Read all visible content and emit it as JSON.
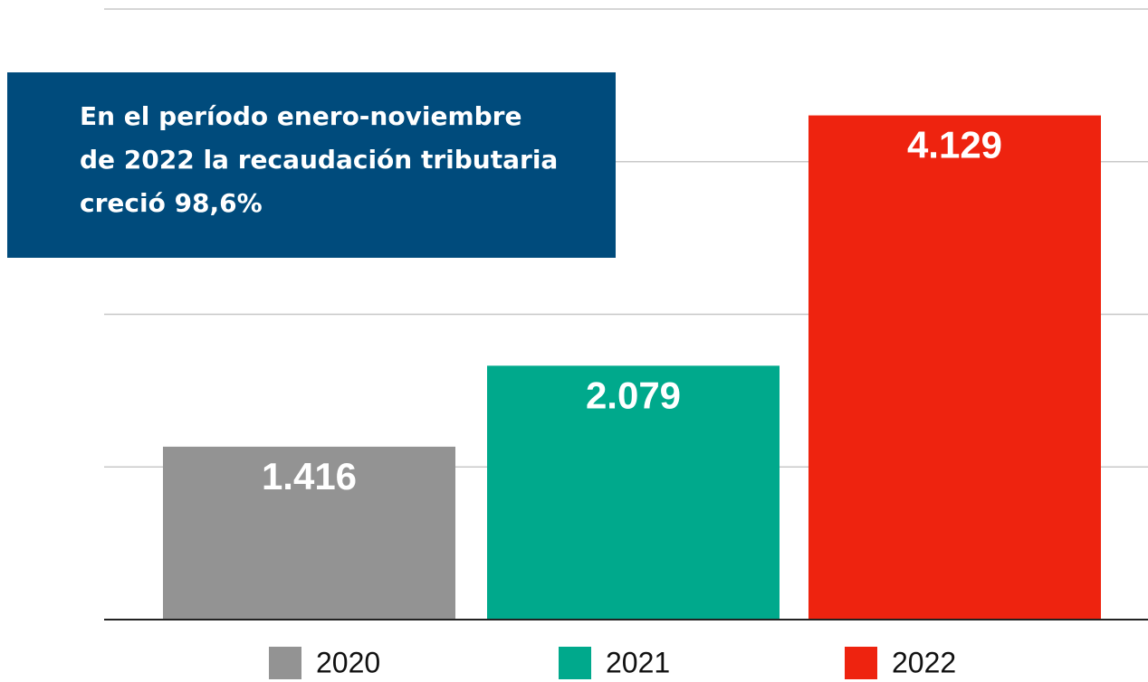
{
  "chart_data": {
    "type": "bar",
    "annotation": [
      "En el período enero-noviembre",
      "de 2022 la recaudación tributaria",
      "creció 98,6%"
    ],
    "categories": [
      "2020",
      "2021",
      "2022"
    ],
    "values": [
      1416,
      2079,
      4129
    ],
    "value_labels": [
      "1.416",
      "2.079",
      "4.129"
    ],
    "colors": [
      "#939393",
      "#00a98c",
      "#ee230f"
    ],
    "ylim": [
      0,
      5000
    ],
    "yticks": [
      0,
      1250,
      2500,
      3750,
      5000
    ],
    "grid": true
  }
}
